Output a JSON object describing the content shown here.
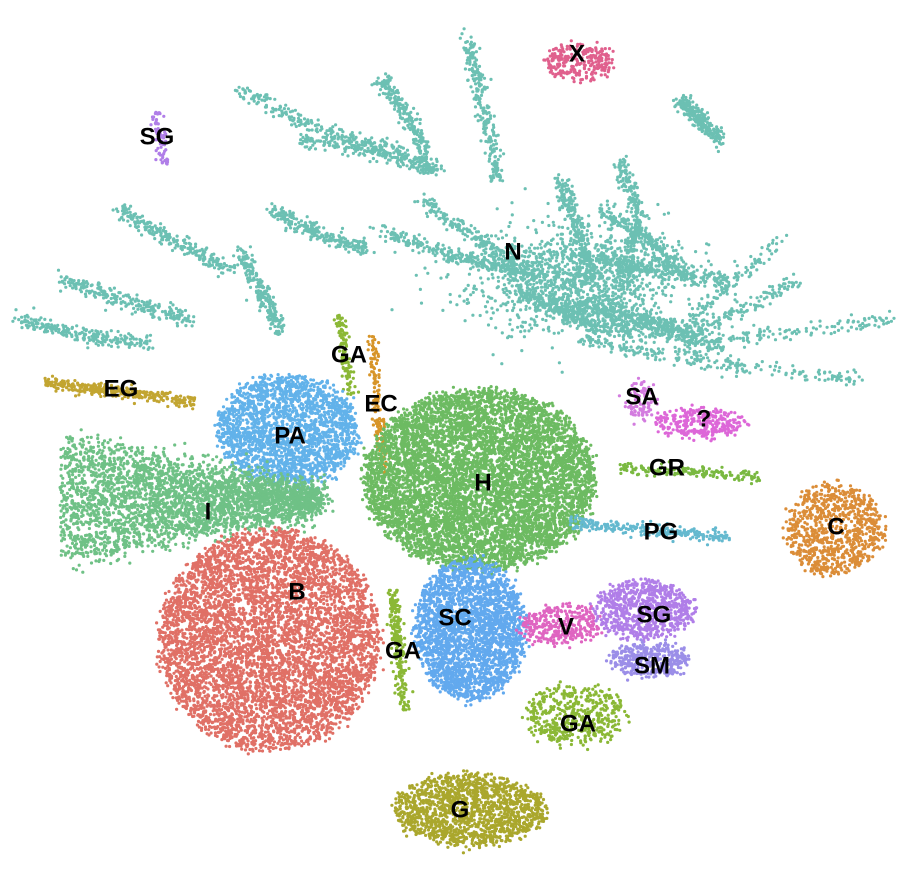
{
  "chart_data": {
    "type": "scatter",
    "title": "",
    "xlabel": "",
    "ylabel": "",
    "legend": "none",
    "grid": false,
    "axes_visible": false,
    "description_note": "",
    "clusters": [
      {
        "label": "N",
        "color": "#6cc0b3",
        "center": [
          513,
          252
        ],
        "spread": [
          310,
          150
        ],
        "density": 5200,
        "shape": "filaments"
      },
      {
        "label": "X",
        "color": "#e0608d",
        "center": [
          580,
          62
        ],
        "spread": [
          36,
          18
        ],
        "density": 260,
        "shape": "blob"
      },
      {
        "label": "SG",
        "color": "#b07ee8",
        "center": [
          160,
          138
        ],
        "spread": [
          10,
          26
        ],
        "density": 70,
        "shape": "streak"
      },
      {
        "label": "EG",
        "color": "#c2a531",
        "center": [
          120,
          392
        ],
        "spread": [
          75,
          16
        ],
        "density": 320,
        "shape": "streak"
      },
      {
        "label": "GA",
        "color": "#8bb836",
        "center": [
          345,
          355
        ],
        "spread": [
          12,
          40
        ],
        "density": 110,
        "shape": "streak"
      },
      {
        "label": "EC",
        "color": "#d79529",
        "center": [
          378,
          406
        ],
        "spread": [
          12,
          70
        ],
        "density": 150,
        "shape": "streak"
      },
      {
        "label": "PA",
        "color": "#62b2ea",
        "center": [
          288,
          430
        ],
        "spread": [
          70,
          55
        ],
        "density": 2200,
        "shape": "blob"
      },
      {
        "label": "I",
        "color": "#6fc186",
        "center": [
          200,
          510
        ],
        "spread": [
          115,
          70
        ],
        "density": 3400,
        "shape": "fan"
      },
      {
        "label": "H",
        "color": "#6dbb62",
        "center": [
          480,
          480
        ],
        "spread": [
          115,
          90
        ],
        "density": 7000,
        "shape": "blob"
      },
      {
        "label": "B",
        "color": "#e07066",
        "center": [
          270,
          640
        ],
        "spread": [
          110,
          110
        ],
        "density": 5600,
        "shape": "blob"
      },
      {
        "label": "SC",
        "color": "#62a9ee",
        "center": [
          470,
          630
        ],
        "spread": [
          55,
          70
        ],
        "density": 2600,
        "shape": "blob"
      },
      {
        "label": "GA",
        "color": "#8bb836",
        "center": [
          398,
          650
        ],
        "spread": [
          12,
          60
        ],
        "density": 220,
        "shape": "streak"
      },
      {
        "label": "V",
        "color": "#df65c1",
        "center": [
          560,
          625
        ],
        "spread": [
          40,
          20
        ],
        "density": 330,
        "shape": "blob"
      },
      {
        "label": "SA",
        "color": "#d37cdf",
        "center": [
          640,
          400
        ],
        "spread": [
          14,
          20
        ],
        "density": 90,
        "shape": "blob"
      },
      {
        "label": "?",
        "color": "#dd67d8",
        "center": [
          700,
          422
        ],
        "spread": [
          45,
          14
        ],
        "density": 300,
        "shape": "blob"
      },
      {
        "label": "GR",
        "color": "#7ab941",
        "center": [
          690,
          472
        ],
        "spread": [
          70,
          7
        ],
        "density": 170,
        "shape": "streak"
      },
      {
        "label": "PG",
        "color": "#64b9cf",
        "center": [
          650,
          530
        ],
        "spread": [
          80,
          12
        ],
        "density": 260,
        "shape": "streak"
      },
      {
        "label": "C",
        "color": "#db8d38",
        "center": [
          835,
          530
        ],
        "spread": [
          48,
          45
        ],
        "density": 850,
        "shape": "blob"
      },
      {
        "label": "SG",
        "color": "#b07ee8",
        "center": [
          645,
          610
        ],
        "spread": [
          50,
          28
        ],
        "density": 760,
        "shape": "blob"
      },
      {
        "label": "SM",
        "color": "#9b8ee8",
        "center": [
          650,
          660
        ],
        "spread": [
          40,
          16
        ],
        "density": 360,
        "shape": "blob"
      },
      {
        "label": "GA",
        "color": "#8bb836",
        "center": [
          575,
          715
        ],
        "spread": [
          50,
          30
        ],
        "density": 480,
        "shape": "blob"
      },
      {
        "label": "G",
        "color": "#aaa72d",
        "center": [
          470,
          810
        ],
        "spread": [
          75,
          35
        ],
        "density": 1500,
        "shape": "blob"
      }
    ]
  },
  "labels": [
    {
      "text": "X",
      "pos": [
        577,
        55
      ]
    },
    {
      "text": "SG",
      "pos": [
        157,
        138
      ]
    },
    {
      "text": "N",
      "pos": [
        513,
        253
      ]
    },
    {
      "text": "GA",
      "pos": [
        349,
        356
      ]
    },
    {
      "text": "EG",
      "pos": [
        121,
        390
      ]
    },
    {
      "text": "EC",
      "pos": [
        381,
        405
      ]
    },
    {
      "text": "SA",
      "pos": [
        642,
        398
      ]
    },
    {
      "text": "?",
      "pos": [
        704,
        420
      ]
    },
    {
      "text": "PA",
      "pos": [
        290,
        437
      ]
    },
    {
      "text": "GR",
      "pos": [
        667,
        469
      ]
    },
    {
      "text": "H",
      "pos": [
        483,
        484
      ]
    },
    {
      "text": "I",
      "pos": [
        208,
        513
      ]
    },
    {
      "text": "C",
      "pos": [
        836,
        528
      ]
    },
    {
      "text": "PG",
      "pos": [
        661,
        533
      ]
    },
    {
      "text": "B",
      "pos": [
        297,
        593
      ]
    },
    {
      "text": "SG",
      "pos": [
        654,
        616
      ]
    },
    {
      "text": "SC",
      "pos": [
        455,
        619
      ]
    },
    {
      "text": "V",
      "pos": [
        566,
        628
      ]
    },
    {
      "text": "GA",
      "pos": [
        403,
        652
      ]
    },
    {
      "text": "SM",
      "pos": [
        652,
        667
      ]
    },
    {
      "text": "GA",
      "pos": [
        578,
        725
      ]
    },
    {
      "text": "G",
      "pos": [
        460,
        811
      ]
    }
  ]
}
